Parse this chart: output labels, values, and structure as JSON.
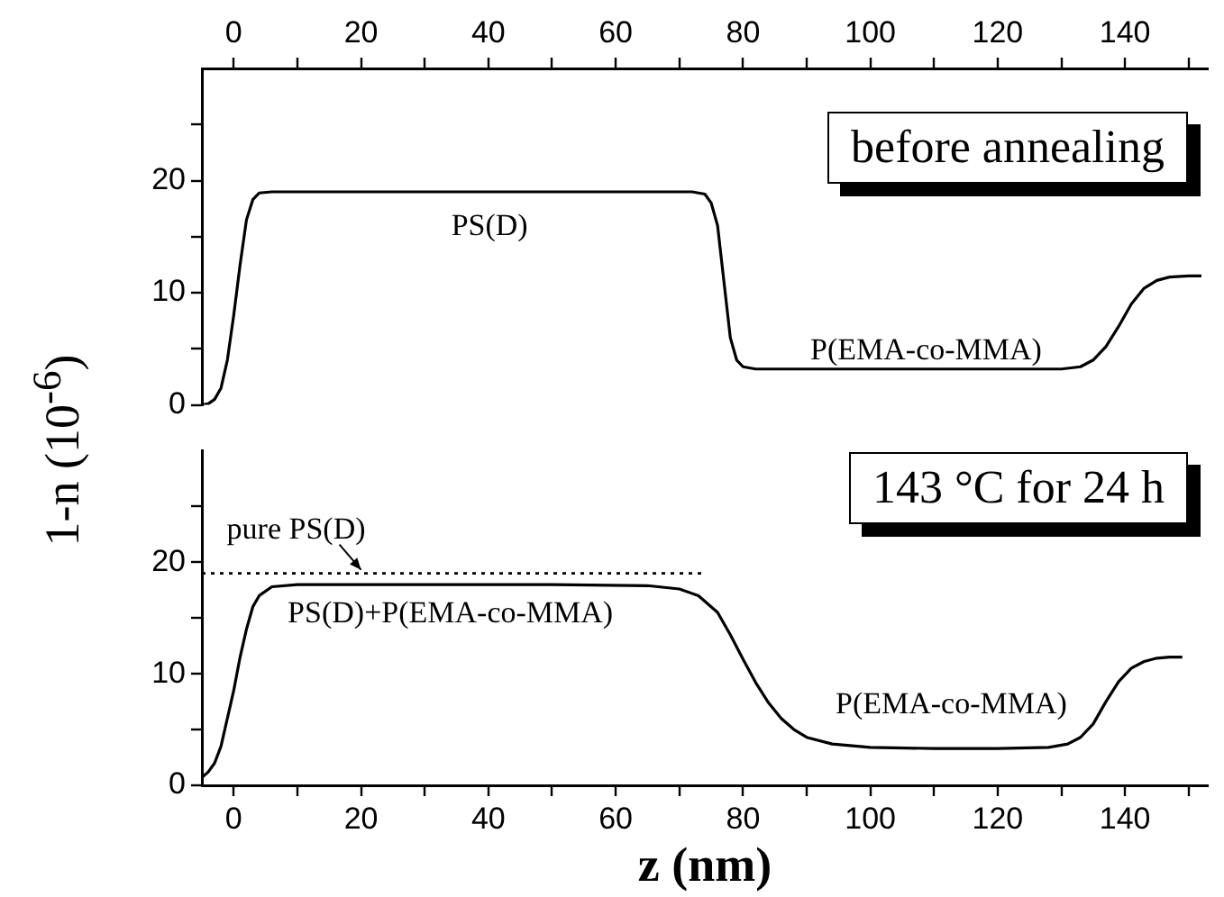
{
  "chart_data": [
    {
      "type": "line",
      "ylabel": "1-n (10$^{-6}$)",
      "xlim": [
        -5,
        153
      ],
      "xticks": [
        0,
        {
          "value": 10,
          "label": null
        },
        20,
        {
          "value": 30,
          "label": null
        },
        40,
        {
          "value": 50,
          "label": null
        },
        60,
        {
          "value": 70,
          "label": null
        },
        80,
        {
          "value": 90,
          "label": null
        },
        100,
        {
          "value": 110,
          "label": null
        },
        120,
        {
          "value": 130,
          "label": null
        },
        140,
        {
          "value": 150,
          "label": null
        }
      ],
      "ylim": [
        0,
        30
      ],
      "yticks": [
        0,
        {
          "value": 5,
          "label": null
        },
        10,
        {
          "value": 15,
          "label": null
        },
        20,
        {
          "value": 25,
          "label": null
        }
      ],
      "grid": false,
      "legend": false,
      "marker": "none",
      "annotations": [
        "before annealing",
        "PS(D)",
        "P(EMA-co-MMA)"
      ],
      "series": [
        {
          "color": "#000000",
          "line_style": "solid",
          "x": [
            -5,
            -4,
            -3,
            -2,
            -1,
            0,
            1,
            2,
            3,
            4,
            6,
            20,
            40,
            60,
            72,
            74,
            75,
            76,
            77,
            78,
            79,
            80,
            82,
            90,
            110,
            130,
            133,
            135,
            137,
            139,
            141,
            143,
            145,
            147,
            150,
            152
          ],
          "values": [
            0,
            0.1,
            0.5,
            1.5,
            4,
            8,
            12.5,
            16.5,
            18.3,
            18.9,
            19,
            19,
            19,
            19,
            19,
            18.8,
            18,
            16,
            11,
            6,
            4,
            3.4,
            3.2,
            3.2,
            3.2,
            3.2,
            3.4,
            4,
            5.2,
            7,
            9,
            10.4,
            11.1,
            11.4,
            11.5,
            11.5
          ]
        }
      ]
    },
    {
      "type": "line",
      "xlabel": "z (nm)",
      "xlim": [
        -5,
        153
      ],
      "xticks": [
        0,
        {
          "value": 10,
          "label": null
        },
        20,
        {
          "value": 30,
          "label": null
        },
        40,
        {
          "value": 50,
          "label": null
        },
        60,
        {
          "value": 70,
          "label": null
        },
        80,
        {
          "value": 90,
          "label": null
        },
        100,
        {
          "value": 110,
          "label": null
        },
        120,
        {
          "value": 130,
          "label": null
        },
        140,
        {
          "value": 150,
          "label": null
        }
      ],
      "ylim": [
        0,
        30
      ],
      "yticks": [
        0,
        {
          "value": 5,
          "label": null
        },
        10,
        {
          "value": 15,
          "label": null
        },
        20,
        {
          "value": 25,
          "label": null
        }
      ],
      "grid": false,
      "legend": false,
      "marker": "none",
      "annotations": [
        "143 °C for 24 h",
        {
          "text": "pure PS(D)",
          "x": 20,
          "y": 19
        },
        "PS(D)+P(EMA-co-MMA)",
        "P(EMA-co-MMA)"
      ],
      "series": [
        {
          "color": "#000000",
          "line_style": "solid",
          "x": [
            -5,
            -4,
            -3,
            -2,
            -1,
            0,
            1,
            2,
            3,
            4,
            6,
            10,
            30,
            50,
            65,
            70,
            73,
            76,
            78,
            80,
            82,
            84,
            86,
            88,
            90,
            94,
            100,
            110,
            120,
            128,
            131,
            133,
            135,
            137,
            139,
            141,
            143,
            145,
            147,
            149
          ],
          "values": [
            0.7,
            1.2,
            2,
            3.5,
            6,
            8.5,
            11.5,
            14,
            16,
            17,
            17.8,
            18,
            18,
            18,
            17.9,
            17.6,
            17,
            15.5,
            13.5,
            11.3,
            9.2,
            7.4,
            6,
            5,
            4.3,
            3.7,
            3.4,
            3.3,
            3.3,
            3.4,
            3.7,
            4.3,
            5.5,
            7.5,
            9.3,
            10.5,
            11.1,
            11.4,
            11.5,
            11.5
          ]
        },
        {
          "color": "#000000",
          "line_style": "dotted",
          "x": [
            -5,
            74
          ],
          "values": [
            19,
            19
          ]
        }
      ]
    }
  ]
}
